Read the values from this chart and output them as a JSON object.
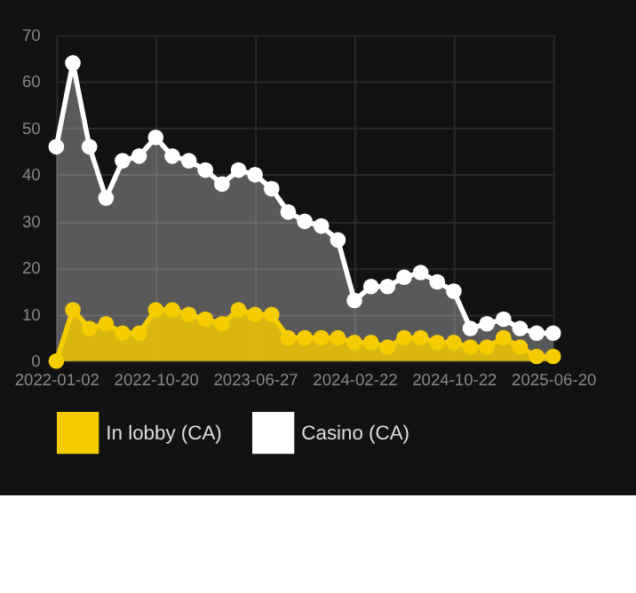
{
  "chart_data": {
    "type": "area",
    "categories": [
      "2022-01-02",
      null,
      null,
      null,
      null,
      null,
      "2022-10-20",
      null,
      null,
      null,
      null,
      null,
      "2023-06-27",
      null,
      null,
      null,
      null,
      null,
      "2024-02-22",
      null,
      null,
      null,
      null,
      null,
      "2024-10-22",
      null,
      null,
      null,
      null,
      null,
      "2025-06-20"
    ],
    "series": [
      {
        "name": "In lobby (CA)",
        "color": "#f5cc00",
        "values": [
          0,
          11,
          7,
          8,
          6,
          6,
          11,
          11,
          10,
          9,
          8,
          11,
          10,
          10,
          5,
          5,
          5,
          5,
          4,
          4,
          3,
          5,
          5,
          4,
          4,
          3,
          3,
          5,
          3,
          1,
          1
        ]
      },
      {
        "name": "Casino (CA)",
        "color": "#ffffff",
        "values": [
          46,
          64,
          46,
          35,
          43,
          44,
          48,
          44,
          43,
          41,
          38,
          41,
          40,
          37,
          32,
          30,
          29,
          26,
          13,
          16,
          16,
          18,
          19,
          17,
          15,
          7,
          8,
          9,
          7,
          6,
          6
        ]
      }
    ],
    "ylim": [
      0,
      70
    ],
    "yticks": [
      0,
      10,
      20,
      30,
      40,
      50,
      60,
      70
    ],
    "grid": true,
    "legend": "bottom",
    "marker": "circle",
    "line_style": "solid"
  }
}
